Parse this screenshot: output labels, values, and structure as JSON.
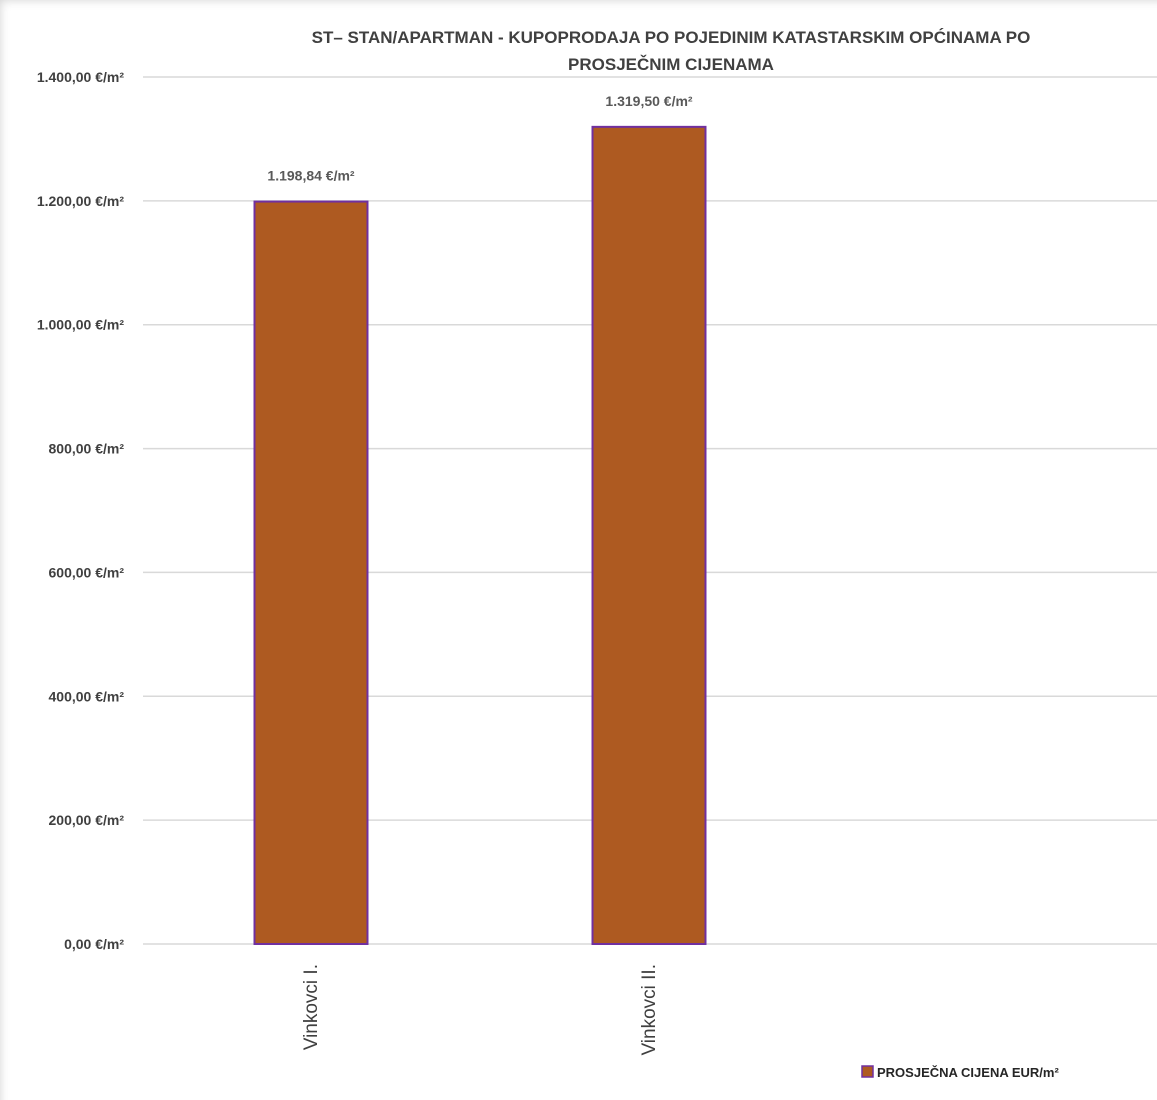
{
  "chart_data": {
    "type": "bar",
    "title": "ST– STAN/APARTMAN - KUPOPRODAJA PO POJEDINIM KATASTARSKIM OPĆINAMA PO PROSJEČNIM CIJENAMA",
    "title_lines": [
      "ST– STAN/APARTMAN - KUPOPRODAJA PO POJEDINIM KATASTARSKIM OPĆINAMA PO",
      "PROSJEČNIM CIJENAMA"
    ],
    "categories": [
      "Vinkovci I.",
      "Vinkovci II."
    ],
    "series": [
      {
        "name": "PROSJEČNA CIJENA EUR/m²",
        "values": [
          1198.84,
          1319.5
        ],
        "data_labels": [
          "1.198,84 €/m²",
          "1.319,50 €/m²"
        ],
        "color": "#AE5A21",
        "border_color": "#7030A0"
      }
    ],
    "ylim": [
      0,
      1400
    ],
    "yticks": [
      0,
      200,
      400,
      600,
      800,
      1000,
      1200,
      1400
    ],
    "ytick_labels": [
      "0,00 €/m²",
      "200,00 €/m²",
      "400,00 €/m²",
      "600,00 €/m²",
      "800,00 €/m²",
      "1.000,00 €/m²",
      "1.200,00 €/m²",
      "1.400,00 €/m²"
    ],
    "category_slots": 3,
    "xlabel": "",
    "ylabel": "",
    "grid": true,
    "gridline_color": "#D9D9D9",
    "legend_position": "bottom-right",
    "category_label_rotation": "vertical"
  }
}
